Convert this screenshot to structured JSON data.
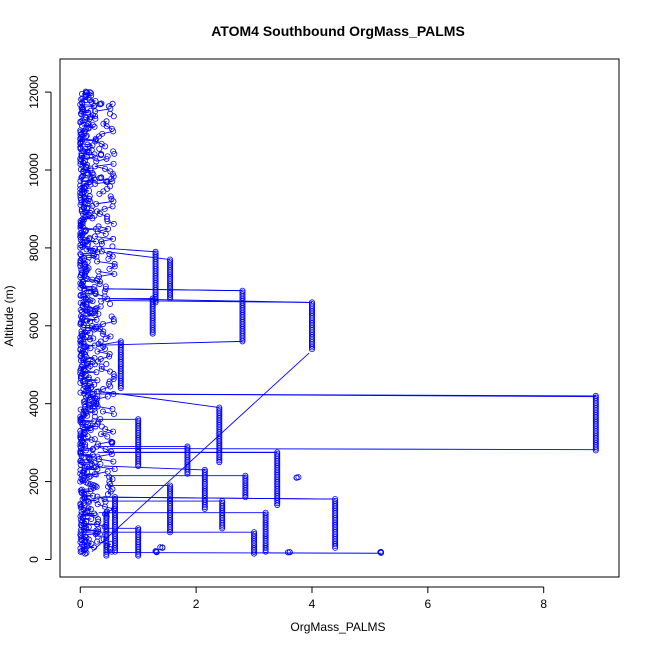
{
  "chart_data": {
    "type": "scatter",
    "title": "ATOM4 Southbound OrgMass_PALMS",
    "xlabel": "OrgMass_PALMS",
    "ylabel": "Altitude (m)",
    "xlim": [
      -0.35,
      9.3
    ],
    "ylim": [
      -450,
      12850
    ],
    "xticks": [
      0,
      2,
      4,
      6,
      8
    ],
    "yticks": [
      0,
      2000,
      4000,
      6000,
      8000,
      10000,
      12000
    ],
    "series_color": "#0000ff",
    "marker": "open-circle",
    "connected": true,
    "dense_region": {
      "x_range": [
        0,
        0.3
      ],
      "y_range": [
        150,
        12000
      ]
    },
    "excursions": [
      {
        "x": 1.3,
        "y_range": [
          6600,
          7900
        ],
        "from_y": 8000
      },
      {
        "x": 1.55,
        "y_range": [
          6700,
          7700
        ],
        "from_y": 7900
      },
      {
        "x": 2.8,
        "y_range": [
          5600,
          6900
        ],
        "from_y": 6950
      },
      {
        "x": 4.0,
        "y_range": [
          5400,
          6600
        ],
        "from_y": 6650
      },
      {
        "x": 1.25,
        "y_range": [
          5800,
          6700
        ],
        "from_y": 6700
      },
      {
        "x": 0.7,
        "y_range": [
          4400,
          5600
        ],
        "from_y": 5500
      },
      {
        "x": 2.4,
        "y_range": [
          2500,
          3900
        ],
        "from_y": 4300
      },
      {
        "x": 8.9,
        "y_range": [
          2800,
          4200
        ],
        "from_y": 4250
      },
      {
        "x": 1.0,
        "y_range": [
          2400,
          3600
        ],
        "from_y": 3600
      },
      {
        "x": 1.85,
        "y_range": [
          2200,
          2900
        ],
        "from_y": 2900
      },
      {
        "x": 3.4,
        "y_range": [
          1400,
          2750
        ],
        "from_y": 2750
      },
      {
        "x": 2.15,
        "y_range": [
          1300,
          2300
        ],
        "from_y": 2400
      },
      {
        "x": 2.85,
        "y_range": [
          1600,
          2150
        ],
        "from_y": 2150
      },
      {
        "x": 1.55,
        "y_range": [
          700,
          1900
        ],
        "from_y": 1900
      },
      {
        "x": 4.4,
        "y_range": [
          300,
          1550
        ],
        "from_y": 1600
      },
      {
        "x": 2.45,
        "y_range": [
          800,
          1500
        ],
        "from_y": 1500
      },
      {
        "x": 3.2,
        "y_range": [
          200,
          1200
        ],
        "from_y": 1200
      },
      {
        "x": 3.0,
        "y_range": [
          150,
          700
        ],
        "from_y": 700
      },
      {
        "x": 0.6,
        "y_range": [
          200,
          1600
        ],
        "from_y": 1600
      },
      {
        "x": 1.0,
        "y_range": [
          100,
          800
        ],
        "from_y": 800
      },
      {
        "x": 0.45,
        "y_range": [
          100,
          1200
        ],
        "from_y": 1200
      }
    ],
    "isolated_points": [
      {
        "x": 3.75,
        "y": 2100
      },
      {
        "x": 3.6,
        "y": 200
      },
      {
        "x": 5.2,
        "y": 180
      },
      {
        "x": 1.3,
        "y": 200
      },
      {
        "x": 1.4,
        "y": 300
      },
      {
        "x": 0.35,
        "y": 11700
      },
      {
        "x": 0.35,
        "y": 10400
      },
      {
        "x": 0.35,
        "y": 9800
      },
      {
        "x": 0.45,
        "y": 9700
      },
      {
        "x": 0.1,
        "y": 12000
      },
      {
        "x": 0.55,
        "y": 3000
      }
    ],
    "long_connectors": [
      {
        "from": [
          0.2,
          4250
        ],
        "to": [
          8.9,
          4180
        ]
      },
      {
        "from": [
          0.5,
          2850
        ],
        "to": [
          8.9,
          2820
        ]
      },
      {
        "from": [
          0.2,
          200
        ],
        "to": [
          3.95,
          5300
        ]
      },
      {
        "from": [
          0.3,
          6700
        ],
        "to": [
          4.0,
          6600
        ]
      },
      {
        "from": [
          0.4,
          6950
        ],
        "to": [
          2.8,
          6900
        ]
      },
      {
        "from": [
          0.3,
          5500
        ],
        "to": [
          2.8,
          5600
        ]
      },
      {
        "from": [
          0.5,
          1600
        ],
        "to": [
          4.4,
          1550
        ]
      },
      {
        "from": [
          0.3,
          2750
        ],
        "to": [
          3.4,
          2750
        ]
      },
      {
        "from": [
          0.4,
          180
        ],
        "to": [
          5.2,
          160
        ]
      }
    ]
  }
}
